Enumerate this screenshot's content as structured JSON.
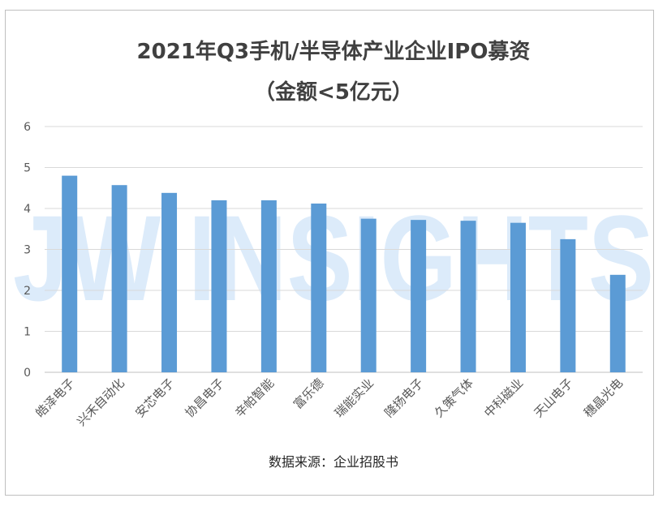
{
  "chart_data": {
    "type": "bar",
    "title": "2021年Q3手机/半导体产业企业IPO募资",
    "subtitle": "（金额<5亿元）",
    "categories": [
      "皓泽电子",
      "兴禾自动化",
      "安芯电子",
      "协昌电子",
      "辛帕智能",
      "富乐德",
      "瑞能实业",
      "隆扬电子",
      "久策气体",
      "中科磁业",
      "天山电子",
      "穗晶光电"
    ],
    "values": [
      4.8,
      4.57,
      4.38,
      4.2,
      4.2,
      4.12,
      3.75,
      3.72,
      3.7,
      3.65,
      3.25,
      2.38
    ],
    "ylim": [
      0,
      6
    ],
    "yticks": [
      "0",
      "1",
      "2",
      "3",
      "4",
      "5",
      "6"
    ],
    "grid": true,
    "bar_color": "#5B9BD5",
    "watermark": "JW INSIGHTS"
  },
  "source": "数据来源：企业招股书"
}
